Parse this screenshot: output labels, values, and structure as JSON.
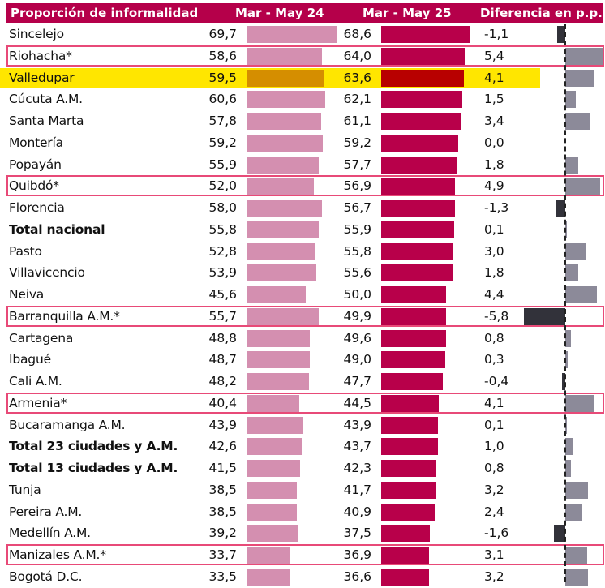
{
  "chart_data": {
    "type": "table",
    "title": "Proporción de informalidad",
    "columns": [
      "Proporción de informalidad",
      "Mar - May 24",
      "Mar - May 25",
      "Diferencia en p.p."
    ],
    "highlighted_row": "Valledupar",
    "outlined_rows": [
      "Riohacha*",
      "Quibdó*",
      "Barranquilla A.M.*",
      "Armenia*",
      "Manizales A.M.*"
    ],
    "bold_rows": [
      "Total nacional",
      "Total 23 ciudades y A.M.",
      "Total 13 ciudades y A.M."
    ],
    "colors": {
      "header_bg": "#B5004A",
      "bar_2024": "#D48FB0",
      "bar_2025": "#B8004A",
      "diff_positive": "#8C8A99",
      "diff_negative": "#32323A",
      "highlight": "#FFE600",
      "highlight_bar_2024": "#D58E00",
      "highlight_bar_2025": "#B80000",
      "outline": "#E84A78"
    },
    "rows": [
      {
        "name": "Sincelejo",
        "v2024": 69.7,
        "v2025": 68.6,
        "diff": -1.1,
        "v2024_label": "69,7",
        "v2025_label": "68,6",
        "diff_label": "-1,1"
      },
      {
        "name": "Riohacha*",
        "v2024": 58.6,
        "v2025": 64.0,
        "diff": 5.4,
        "v2024_label": "58,6",
        "v2025_label": "64,0",
        "diff_label": "5,4"
      },
      {
        "name": "Valledupar",
        "v2024": 59.5,
        "v2025": 63.6,
        "diff": 4.1,
        "v2024_label": "59,5",
        "v2025_label": "63,6",
        "diff_label": "4,1"
      },
      {
        "name": "Cúcuta A.M.",
        "v2024": 60.6,
        "v2025": 62.1,
        "diff": 1.5,
        "v2024_label": "60,6",
        "v2025_label": "62,1",
        "diff_label": "1,5"
      },
      {
        "name": "Santa Marta",
        "v2024": 57.8,
        "v2025": 61.1,
        "diff": 3.4,
        "v2024_label": "57,8",
        "v2025_label": "61,1",
        "diff_label": "3,4"
      },
      {
        "name": "Montería",
        "v2024": 59.2,
        "v2025": 59.2,
        "diff": 0.0,
        "v2024_label": "59,2",
        "v2025_label": "59,2",
        "diff_label": "0,0"
      },
      {
        "name": "Popayán",
        "v2024": 55.9,
        "v2025": 57.7,
        "diff": 1.8,
        "v2024_label": "55,9",
        "v2025_label": "57,7",
        "diff_label": "1,8"
      },
      {
        "name": "Quibdó*",
        "v2024": 52.0,
        "v2025": 56.9,
        "diff": 4.9,
        "v2024_label": "52,0",
        "v2025_label": "56,9",
        "diff_label": "4,9"
      },
      {
        "name": "Florencia",
        "v2024": 58.0,
        "v2025": 56.7,
        "diff": -1.3,
        "v2024_label": "58,0",
        "v2025_label": "56,7",
        "diff_label": "-1,3"
      },
      {
        "name": "Total nacional",
        "v2024": 55.8,
        "v2025": 55.9,
        "diff": 0.1,
        "v2024_label": "55,8",
        "v2025_label": "55,9",
        "diff_label": "0,1"
      },
      {
        "name": "Pasto",
        "v2024": 52.8,
        "v2025": 55.8,
        "diff": 3.0,
        "v2024_label": "52,8",
        "v2025_label": "55,8",
        "diff_label": "3,0"
      },
      {
        "name": "Villavicencio",
        "v2024": 53.9,
        "v2025": 55.6,
        "diff": 1.8,
        "v2024_label": "53,9",
        "v2025_label": "55,6",
        "diff_label": "1,8"
      },
      {
        "name": "Neiva",
        "v2024": 45.6,
        "v2025": 50.0,
        "diff": 4.4,
        "v2024_label": "45,6",
        "v2025_label": "50,0",
        "diff_label": "4,4"
      },
      {
        "name": "Barranquilla A.M.*",
        "v2024": 55.7,
        "v2025": 49.9,
        "diff": -5.8,
        "v2024_label": "55,7",
        "v2025_label": "49,9",
        "diff_label": "-5,8"
      },
      {
        "name": "Cartagena",
        "v2024": 48.8,
        "v2025": 49.6,
        "diff": 0.8,
        "v2024_label": "48,8",
        "v2025_label": "49,6",
        "diff_label": "0,8"
      },
      {
        "name": "Ibagué",
        "v2024": 48.7,
        "v2025": 49.0,
        "diff": 0.3,
        "v2024_label": "48,7",
        "v2025_label": "49,0",
        "diff_label": "0,3"
      },
      {
        "name": "Cali A.M.",
        "v2024": 48.2,
        "v2025": 47.7,
        "diff": -0.4,
        "v2024_label": "48,2",
        "v2025_label": "47,7",
        "diff_label": "-0,4"
      },
      {
        "name": "Armenia*",
        "v2024": 40.4,
        "v2025": 44.5,
        "diff": 4.1,
        "v2024_label": "40,4",
        "v2025_label": "44,5",
        "diff_label": "4,1"
      },
      {
        "name": "Bucaramanga A.M.",
        "v2024": 43.9,
        "v2025": 43.9,
        "diff": 0.1,
        "v2024_label": "43,9",
        "v2025_label": "43,9",
        "diff_label": "0,1"
      },
      {
        "name": "Total 23 ciudades y A.M.",
        "v2024": 42.6,
        "v2025": 43.7,
        "diff": 1.0,
        "v2024_label": "42,6",
        "v2025_label": "43,7",
        "diff_label": "1,0"
      },
      {
        "name": "Total 13 ciudades y A.M.",
        "v2024": 41.5,
        "v2025": 42.3,
        "diff": 0.8,
        "v2024_label": "41,5",
        "v2025_label": "42,3",
        "diff_label": "0,8"
      },
      {
        "name": "Tunja",
        "v2024": 38.5,
        "v2025": 41.7,
        "diff": 3.2,
        "v2024_label": "38,5",
        "v2025_label": "41,7",
        "diff_label": "3,2"
      },
      {
        "name": "Pereira A.M.",
        "v2024": 38.5,
        "v2025": 40.9,
        "diff": 2.4,
        "v2024_label": "38,5",
        "v2025_label": "40,9",
        "diff_label": "2,4"
      },
      {
        "name": "Medellín A.M.",
        "v2024": 39.2,
        "v2025": 37.5,
        "diff": -1.6,
        "v2024_label": "39,2",
        "v2025_label": "37,5",
        "diff_label": "-1,6"
      },
      {
        "name": "Manizales A.M.*",
        "v2024": 33.7,
        "v2025": 36.9,
        "diff": 3.1,
        "v2024_label": "33,7",
        "v2025_label": "36,9",
        "diff_label": "3,1"
      },
      {
        "name": "Bogotá D.C.",
        "v2024": 33.5,
        "v2025": 36.6,
        "diff": 3.2,
        "v2024_label": "33,5",
        "v2025_label": "36,6",
        "diff_label": "3,2"
      }
    ]
  }
}
